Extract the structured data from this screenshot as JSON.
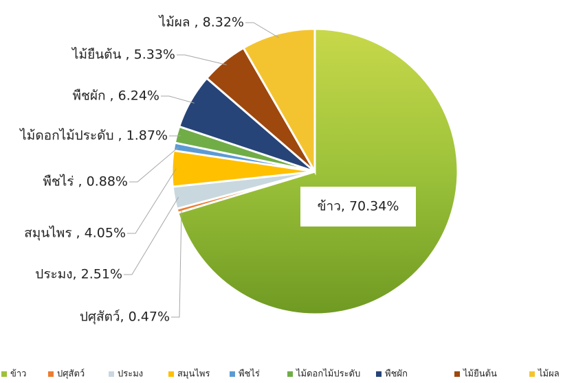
{
  "chart_data": {
    "type": "pie",
    "categories": [
      "ข้าว",
      "ปศุสัตว์",
      "ประมง",
      "สมุนไพร",
      "พืชไร่",
      "ไม้ดอกไม้ประดับ",
      "พืชผัก",
      "ไม้ยืนต้น",
      "ไม้ผล"
    ],
    "values": [
      70.34,
      0.47,
      2.51,
      4.05,
      0.88,
      1.87,
      6.24,
      5.33,
      8.32
    ],
    "value_labels": [
      "ข้าว, 70.34%",
      "ปศุสัตว์, 0.47%",
      "ประมง, 2.51%",
      "สมุนไพร , 4.05%",
      "พืชไร่ , 0.88%",
      "ไม้ดอกไม้ประดับ , 1.87%",
      "พืชผัก , 6.24%",
      "ไม้ยืนต้น , 5.33%",
      "ไม้ผล , 8.32%"
    ],
    "colors": [
      "#9cc23a",
      "#ed7d31",
      "#c9d8df",
      "#ffc000",
      "#5b9bd5",
      "#70ad47",
      "#264478",
      "#9e480e",
      "#f4c430"
    ],
    "legend": "bottom"
  }
}
